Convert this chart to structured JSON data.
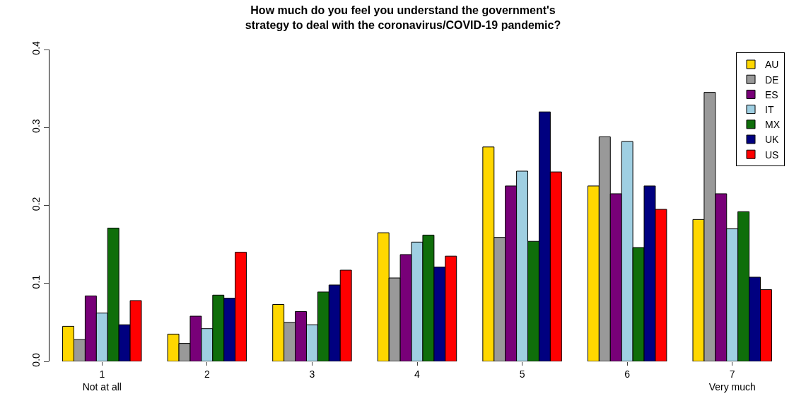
{
  "chart_data": {
    "type": "bar",
    "title": "How much do you feel you understand the government's\nstrategy to deal with the coronavirus/COVID-19 pandemic?",
    "categories": [
      "1\nNot at all",
      "2",
      "3",
      "4",
      "5",
      "6",
      "7\nVery much"
    ],
    "series": [
      {
        "name": "AU",
        "color": "#ffd700",
        "values": [
          0.045,
          0.035,
          0.073,
          0.165,
          0.275,
          0.225,
          0.182
        ]
      },
      {
        "name": "DE",
        "color": "#999999",
        "values": [
          0.028,
          0.023,
          0.05,
          0.107,
          0.159,
          0.288,
          0.345
        ]
      },
      {
        "name": "ES",
        "color": "#780078",
        "values": [
          0.084,
          0.058,
          0.064,
          0.137,
          0.225,
          0.215,
          0.215
        ]
      },
      {
        "name": "IT",
        "color": "#9fcfe2",
        "values": [
          0.062,
          0.042,
          0.047,
          0.153,
          0.244,
          0.282,
          0.17
        ]
      },
      {
        "name": "MX",
        "color": "#0f6e0a",
        "values": [
          0.171,
          0.085,
          0.089,
          0.162,
          0.154,
          0.146,
          0.192
        ]
      },
      {
        "name": "UK",
        "color": "#000080",
        "values": [
          0.047,
          0.081,
          0.098,
          0.121,
          0.32,
          0.225,
          0.108
        ]
      },
      {
        "name": "US",
        "color": "#ff0000",
        "values": [
          0.078,
          0.14,
          0.117,
          0.135,
          0.243,
          0.195,
          0.092
        ]
      }
    ],
    "ylim": [
      0,
      0.4
    ],
    "yticks": [
      {
        "value": 0,
        "label": "0.0"
      },
      0.1,
      0.2,
      0.3,
      0.4
    ],
    "legend": "top right"
  }
}
